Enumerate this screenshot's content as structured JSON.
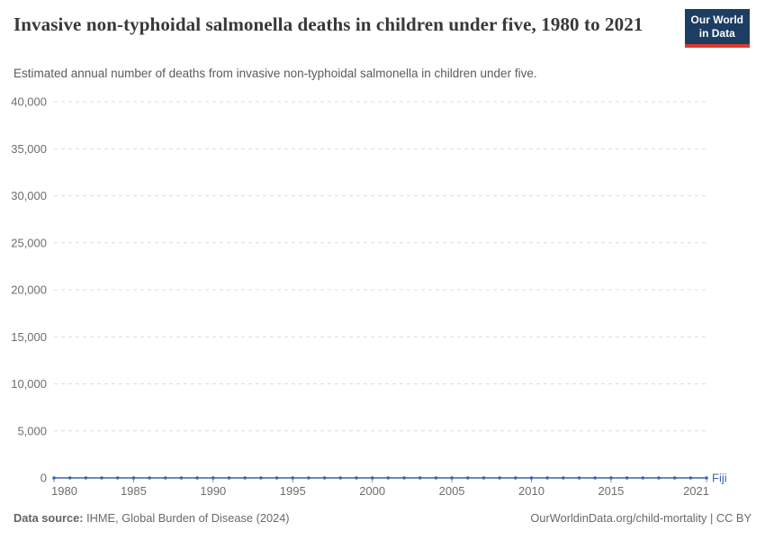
{
  "header": {
    "title": "Invasive non-typhoidal salmonella deaths in children under five, 1980 to 2021",
    "subtitle": "Estimated annual number of deaths from invasive non-typhoidal salmonella in children under five.",
    "logo": {
      "line1": "Our World",
      "line2": "in Data",
      "bg_color": "#1d3d63",
      "accent_color": "#dc3b2e"
    }
  },
  "chart_data": {
    "type": "line",
    "title": "Invasive non-typhoidal salmonella deaths in children under five, 1980 to 2021",
    "xlabel": "",
    "ylabel": "",
    "xlim": [
      1980,
      2021
    ],
    "ylim": [
      0,
      40000
    ],
    "grid": "horizontal-dashed",
    "legend_position": "end-of-line-label",
    "x": [
      1980,
      1981,
      1982,
      1983,
      1984,
      1985,
      1986,
      1987,
      1988,
      1989,
      1990,
      1991,
      1992,
      1993,
      1994,
      1995,
      1996,
      1997,
      1998,
      1999,
      2000,
      2001,
      2002,
      2003,
      2004,
      2005,
      2006,
      2007,
      2008,
      2009,
      2010,
      2011,
      2012,
      2013,
      2014,
      2015,
      2016,
      2017,
      2018,
      2019,
      2020,
      2021
    ],
    "series": [
      {
        "name": "Fiji",
        "color": "#3d63a9",
        "values": [
          0,
          0,
          0,
          0,
          0,
          0,
          0,
          0,
          0,
          0,
          0,
          0,
          0,
          0,
          0,
          0,
          0,
          0,
          0,
          0,
          0,
          0,
          0,
          0,
          0,
          0,
          0,
          0,
          0,
          0,
          0,
          0,
          0,
          0,
          0,
          0,
          0,
          0,
          0,
          0,
          0,
          0
        ]
      }
    ],
    "xticks": [
      {
        "value": 1980,
        "label": "1980"
      },
      {
        "value": 1985,
        "label": "1985"
      },
      {
        "value": 1990,
        "label": "1990"
      },
      {
        "value": 1995,
        "label": "1995"
      },
      {
        "value": 2000,
        "label": "2000"
      },
      {
        "value": 2005,
        "label": "2005"
      },
      {
        "value": 2010,
        "label": "2010"
      },
      {
        "value": 2015,
        "label": "2015"
      },
      {
        "value": 2021,
        "label": "2021"
      }
    ],
    "yticks": [
      {
        "value": 0,
        "label": "0"
      },
      {
        "value": 5000,
        "label": "5,000"
      },
      {
        "value": 10000,
        "label": "10,000"
      },
      {
        "value": 15000,
        "label": "15,000"
      },
      {
        "value": 20000,
        "label": "20,000"
      },
      {
        "value": 25000,
        "label": "25,000"
      },
      {
        "value": 30000,
        "label": "30,000"
      },
      {
        "value": 35000,
        "label": "35,000"
      },
      {
        "value": 40000,
        "label": "40,000"
      }
    ]
  },
  "footer": {
    "source_label": "Data source:",
    "source_value": "IHME, Global Burden of Disease (2024)",
    "credit": "OurWorldinData.org/child-mortality | CC BY"
  },
  "colors": {
    "line": "#3d63a9",
    "gridline": "#dcdcdc",
    "zero_line": "#cccccc",
    "tick_label": "#6e6e6e",
    "title": "#383838",
    "subtitle": "#5b5b5b",
    "footer_text": "#6a6a6a"
  }
}
